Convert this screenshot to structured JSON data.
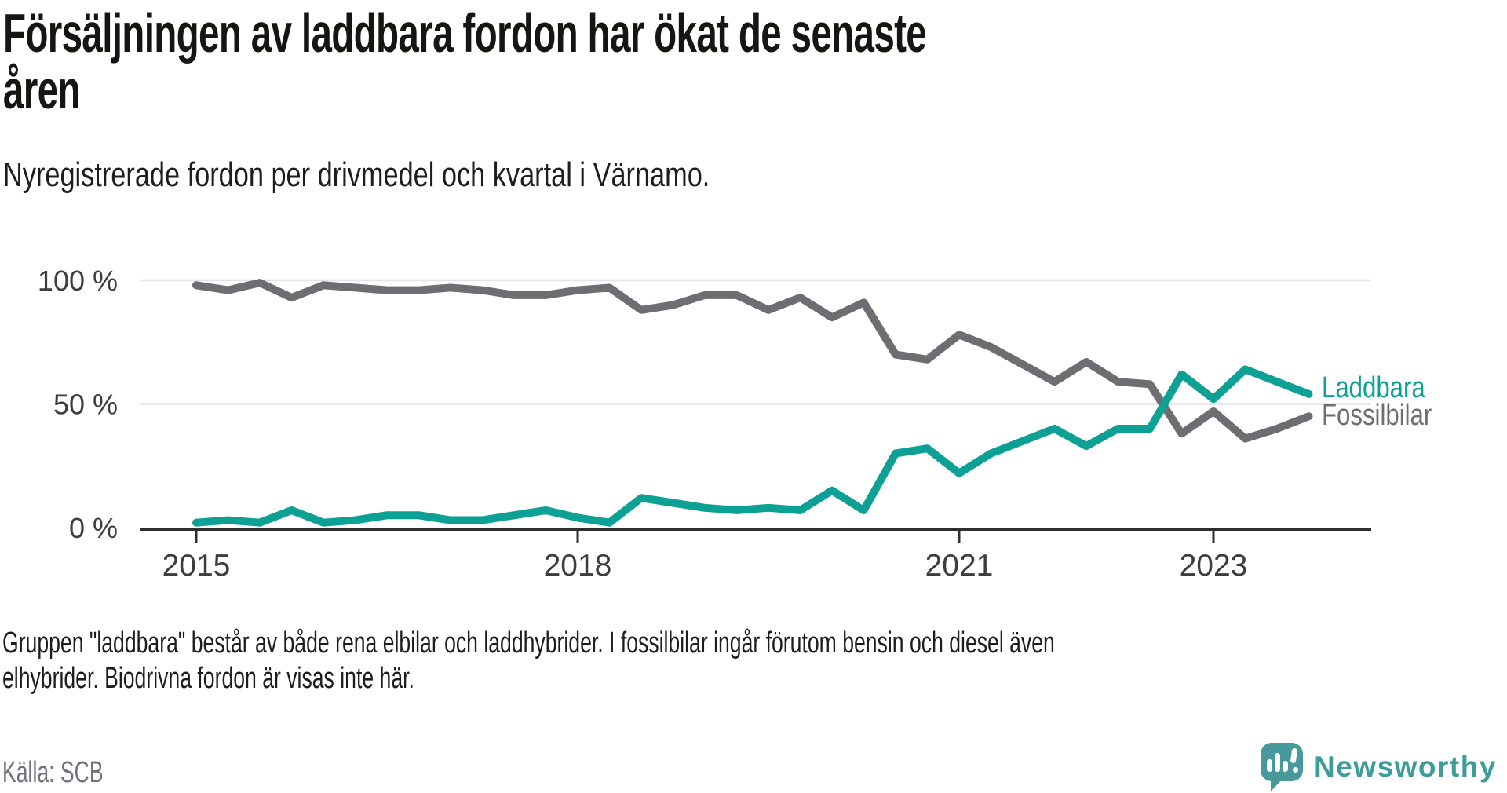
{
  "header": {
    "title_line1": "Försäljningen av laddbara fordon har ökat de senaste",
    "title_line2": "åren",
    "subtitle": "Nyregistrerade fordon per drivmedel och kvartal i Värnamo."
  },
  "chart_data": {
    "type": "line",
    "title": "Försäljningen av laddbara fordon har ökat de senaste åren",
    "subtitle": "Nyregistrerade fordon per drivmedel och kvartal i Värnamo.",
    "unit": "%",
    "ylim": [
      0,
      100
    ],
    "grid": "horizontal",
    "legend_position": "right-of-line-ends",
    "grid_color": "#e4e4e4",
    "axis_color": "#2f2f31",
    "tick_label_color": "#3d3d3d",
    "x": [
      "2015 Q1",
      "2015 Q2",
      "2015 Q3",
      "2015 Q4",
      "2016 Q1",
      "2016 Q2",
      "2016 Q3",
      "2016 Q4",
      "2017 Q1",
      "2017 Q2",
      "2017 Q3",
      "2017 Q4",
      "2018 Q1",
      "2018 Q2",
      "2018 Q3",
      "2018 Q4",
      "2019 Q1",
      "2019 Q2",
      "2019 Q3",
      "2019 Q4",
      "2020 Q1",
      "2020 Q2",
      "2020 Q3",
      "2020 Q4",
      "2021 Q1",
      "2021 Q2",
      "2021 Q3",
      "2021 Q4",
      "2022 Q1",
      "2022 Q2",
      "2022 Q3",
      "2022 Q4",
      "2023 Q1",
      "2023 Q2",
      "2023 Q3",
      "2023 Q4"
    ],
    "xticks": [
      {
        "label": "2015",
        "quarter_index": 0
      },
      {
        "label": "2018",
        "quarter_index": 12
      },
      {
        "label": "2021",
        "quarter_index": 24
      },
      {
        "label": "2023",
        "quarter_index": 32
      }
    ],
    "yticks": [
      {
        "value": 0,
        "label": "0 %"
      },
      {
        "value": 50,
        "label": "50 %"
      },
      {
        "value": 100,
        "label": "100 %"
      }
    ],
    "series": [
      {
        "name": "Laddbara",
        "color": "#0da195",
        "values": [
          2,
          3,
          2,
          7,
          2,
          3,
          5,
          5,
          3,
          3,
          5,
          7,
          4,
          2,
          12,
          10,
          8,
          7,
          8,
          7,
          15,
          7,
          30,
          32,
          22,
          30,
          35,
          40,
          33,
          40,
          40,
          62,
          52,
          64,
          59,
          54
        ]
      },
      {
        "name": "Fossilbilar",
        "color": "#6d6d72",
        "values": [
          98,
          96,
          99,
          93,
          98,
          97,
          96,
          96,
          97,
          96,
          94,
          94,
          96,
          97,
          88,
          90,
          94,
          94,
          88,
          93,
          85,
          91,
          70,
          68,
          78,
          73,
          66,
          59,
          67,
          59,
          58,
          38,
          47,
          36,
          40,
          45
        ]
      }
    ]
  },
  "footnote": {
    "line1": "Gruppen \"laddbara\" består av både rena elbilar och laddhybrider. I fossilbilar ingår förutom bensin och diesel även",
    "line2": "elhybrider. Biodrivna fordon är visas inte här."
  },
  "source": "Källa: SCB",
  "logo": {
    "text": "Newsworthy"
  }
}
